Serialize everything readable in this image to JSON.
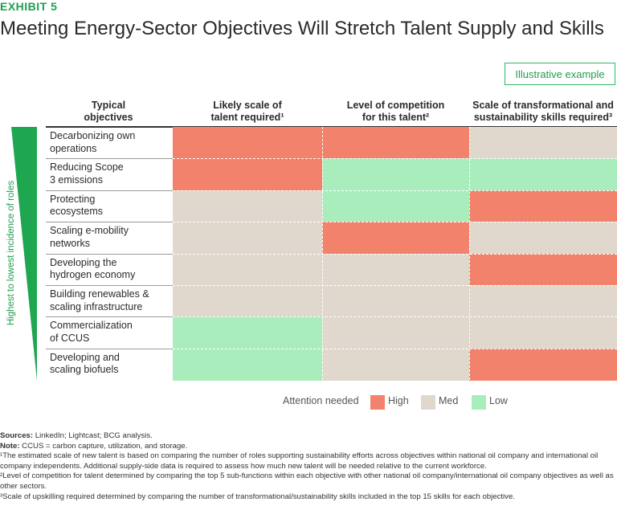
{
  "exhibit_label": "EXHIBIT 5",
  "title": "Meeting Energy-Sector Objectives Will Stretch Talent Supply and Skills",
  "badge": "Illustrative example",
  "y_axis_label": "Highest to lowest incidence of roles",
  "colors": {
    "High": "#f2826b",
    "Med": "#e0d8cc",
    "Low": "#aaedbd",
    "accent": "#1fa650"
  },
  "chart_data": {
    "type": "heatmap",
    "row_header": "Typical objectives",
    "columns": [
      "Likely scale of talent required¹",
      "Level of competition for this talent²",
      "Scale of transformational and sustainability skills required³"
    ],
    "rows": [
      {
        "label": "Decarbonizing own operations",
        "values": [
          "High",
          "High",
          "Med"
        ]
      },
      {
        "label": "Reducing Scope 3 emissions",
        "values": [
          "High",
          "Low",
          "Low"
        ]
      },
      {
        "label": "Protecting ecosystems",
        "values": [
          "Med",
          "Low",
          "High"
        ]
      },
      {
        "label": "Scaling e-mobility networks",
        "values": [
          "Med",
          "High",
          "Med"
        ]
      },
      {
        "label": "Developing the hydrogen economy",
        "values": [
          "Med",
          "Med",
          "High"
        ]
      },
      {
        "label": "Building renewables & scaling infrastructure",
        "values": [
          "Med",
          "Med",
          "Med"
        ]
      },
      {
        "label": "Commercialization of CCUS",
        "values": [
          "Low",
          "Med",
          "Med"
        ]
      },
      {
        "label": "Developing and scaling biofuels",
        "values": [
          "Low",
          "Med",
          "High"
        ]
      }
    ],
    "legend": {
      "title": "Attention needed",
      "levels": [
        "High",
        "Med",
        "Low"
      ]
    }
  },
  "header_lines": {
    "row_header": [
      "Typical",
      "objectives"
    ],
    "columns": [
      [
        "Likely scale of",
        "talent required¹"
      ],
      [
        "Level of competition",
        "for this talent²"
      ],
      [
        "Scale of transformational and",
        "sustainability skills required³"
      ]
    ]
  },
  "row_lines": [
    [
      "Decarbonizing own",
      "operations"
    ],
    [
      "Reducing Scope",
      "3 emissions"
    ],
    [
      "Protecting",
      "ecosystems"
    ],
    [
      "Scaling e-mobility",
      "networks"
    ],
    [
      "Developing the",
      "hydrogen economy"
    ],
    [
      "Building renewables &",
      "scaling infrastructure"
    ],
    [
      "Commercialization",
      "of CCUS"
    ],
    [
      "Developing and",
      "scaling biofuels"
    ]
  ],
  "footnotes": {
    "sources_label": "Sources:",
    "sources_text": " LinkedIn; Lightcast; BCG analysis.",
    "note_label": "Note:",
    "note_text": " CCUS = carbon capture, utilization, and storage.",
    "fn1": "¹The estimated scale of new talent is based on comparing the number of roles supporting sustainability efforts across objectives within national oil company and international oil company independents. Additional supply-side data is required to assess how much new talent will be needed relative to the current workforce.",
    "fn2": "²Level of competition for talent determined by comparing the top 5 sub-functions within each objective with other national oil company/international oil company objectives as well as other sectors.",
    "fn3": "³Scale of upskilling required determined by comparing the number of transformational/sustainability skills included in the top 15 skills for each objective."
  }
}
